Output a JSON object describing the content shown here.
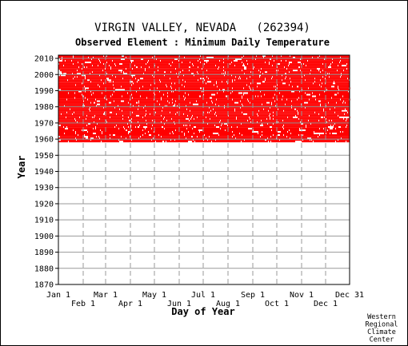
{
  "chart_data": {
    "type": "heatmap",
    "title": "VIRGIN VALLEY, NEVADA   (262394)",
    "subtitle": "Observed Element : Minimum Daily Temperature",
    "xlabel": "Day of Year",
    "ylabel": "Year",
    "x_ticks_upper": [
      "Jan 1",
      "Mar 1",
      "May 1",
      "Jul 1",
      "Sep 1",
      "Nov 1",
      "Dec 31"
    ],
    "x_ticks_lower": [
      "Feb 1",
      "Apr 1",
      "Jun 1",
      "Aug 1",
      "Oct 1",
      "Dec 1"
    ],
    "x_tick_days_upper": [
      1,
      60,
      121,
      182,
      244,
      305,
      365
    ],
    "x_tick_days_lower": [
      32,
      91,
      152,
      213,
      274,
      335
    ],
    "y_ticks": [
      "1870",
      "1880",
      "1890",
      "1900",
      "1910",
      "1920",
      "1930",
      "1940",
      "1950",
      "1960",
      "1970",
      "1980",
      "1990",
      "2000",
      "2010"
    ],
    "xlim": [
      1,
      365
    ],
    "ylim": [
      1870,
      2012
    ],
    "record_years": [
      1958,
      2011
    ],
    "data_color": "#ff0000",
    "grid": true,
    "credit": [
      "Western",
      "Regional",
      "Climate",
      "Center"
    ]
  }
}
